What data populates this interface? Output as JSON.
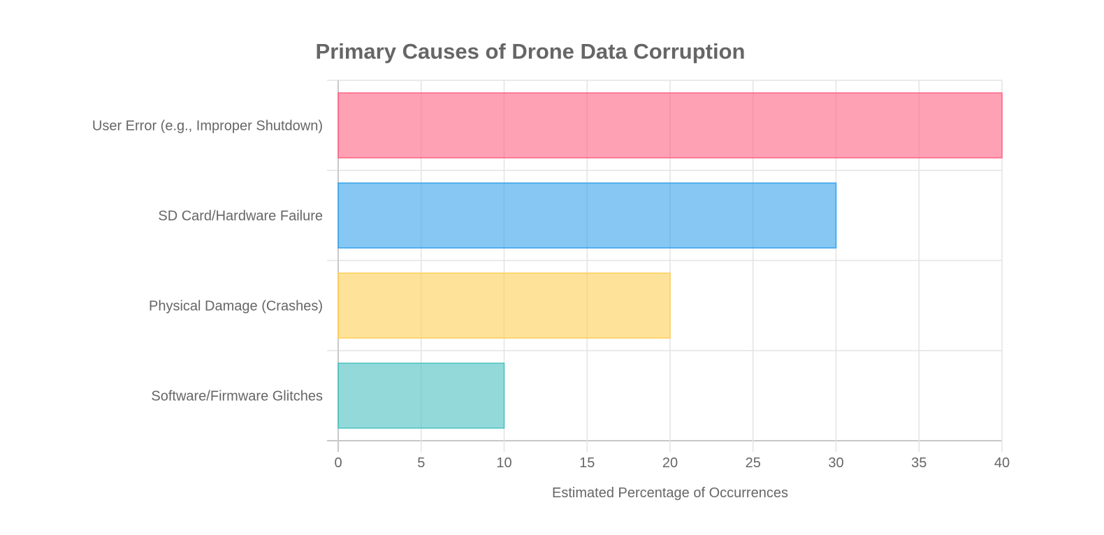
{
  "chart_data": {
    "type": "bar",
    "orientation": "horizontal",
    "title": "Primary Causes of Drone Data Corruption",
    "xlabel": "Estimated Percentage of Occurrences",
    "ylabel": "",
    "categories": [
      "User Error (e.g., Improper Shutdown)",
      "SD Card/Hardware Failure",
      "Physical Damage (Crashes)",
      "Software/Firmware Glitches"
    ],
    "values": [
      40,
      30,
      20,
      10
    ],
    "xlim": [
      0,
      40
    ],
    "xticks": [
      "0",
      "5",
      "10",
      "15",
      "20",
      "25",
      "30",
      "35",
      "40"
    ],
    "grid": true,
    "legend": "none",
    "colors": [
      "#ff6384",
      "#36a2eb",
      "#ffce56",
      "#4bc0c0"
    ]
  }
}
